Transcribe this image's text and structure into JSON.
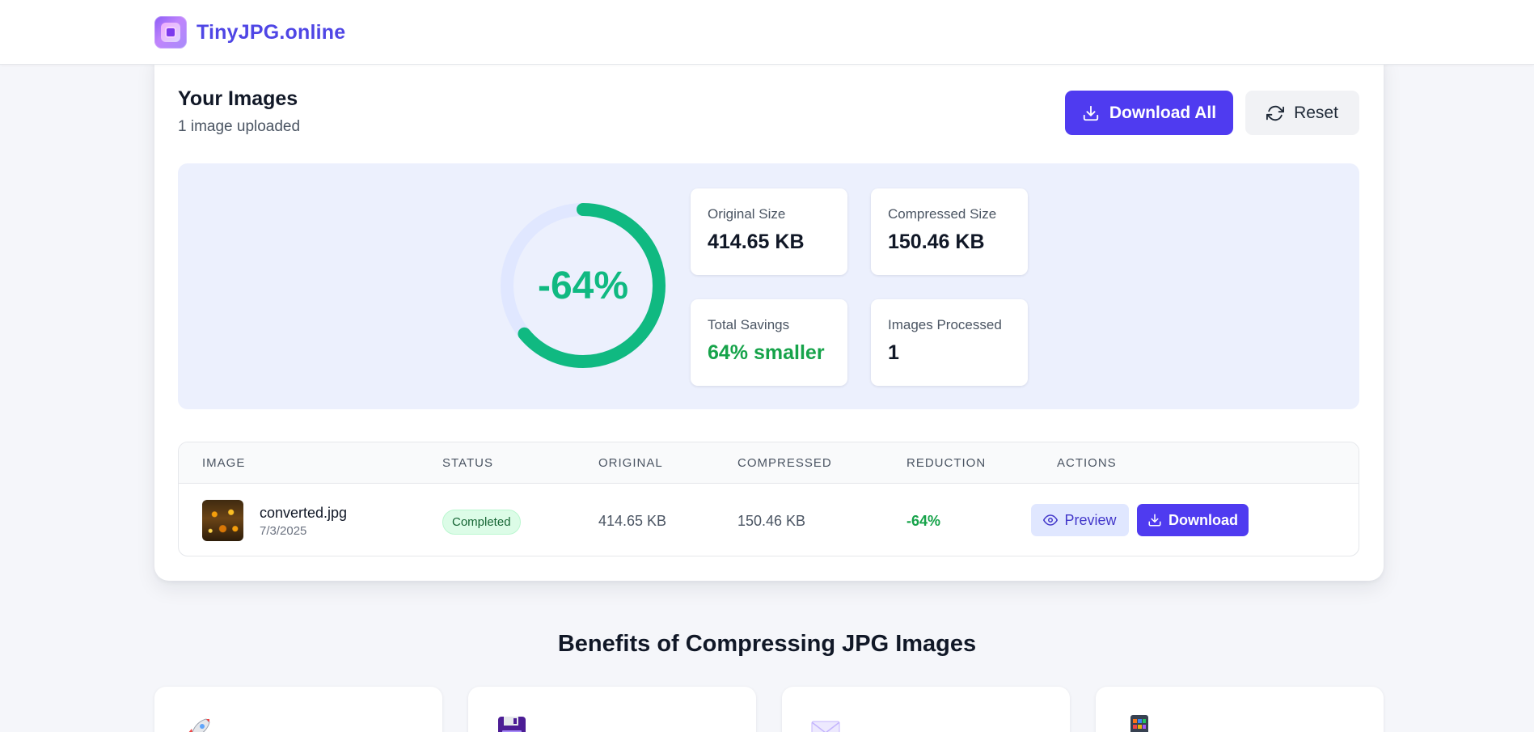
{
  "header": {
    "brand": "TinyJPG.online",
    "logo_icon": "image-logo-icon"
  },
  "images_panel": {
    "title": "Your Images",
    "subtitle": "1 image uploaded",
    "download_all_label": "Download All",
    "reset_label": "Reset"
  },
  "summary": {
    "reduction_label": "-64%",
    "reduction_fraction": 0.64,
    "gauge_color": "#10b981",
    "gauge_track_color": "#e0e7ff",
    "stats": [
      {
        "label": "Original Size",
        "value": "414.65 KB"
      },
      {
        "label": "Compressed Size",
        "value": "150.46 KB"
      },
      {
        "label": "Total Savings",
        "value": "64% smaller"
      },
      {
        "label": "Images Processed",
        "value": "1"
      }
    ]
  },
  "table": {
    "columns": [
      "IMAGE",
      "STATUS",
      "ORIGINAL",
      "COMPRESSED",
      "REDUCTION",
      "ACTIONS"
    ],
    "rows": [
      {
        "name": "converted.jpg",
        "date": "7/3/2025",
        "status": "Completed",
        "original": "414.65 KB",
        "compressed": "150.46 KB",
        "reduction": "-64%",
        "preview_label": "Preview",
        "download_label": "Download"
      }
    ]
  },
  "benefits": {
    "title": "Benefits of Compressing JPG Images",
    "icons": [
      "rocket-icon",
      "floppy-disk-icon",
      "envelope-icon",
      "mobile-phone-icon"
    ]
  },
  "colors": {
    "accent": "#4f3bf0",
    "brand_text": "#4f46e5",
    "success": "#16a34a",
    "summary_bg": "#ecf0fd"
  }
}
